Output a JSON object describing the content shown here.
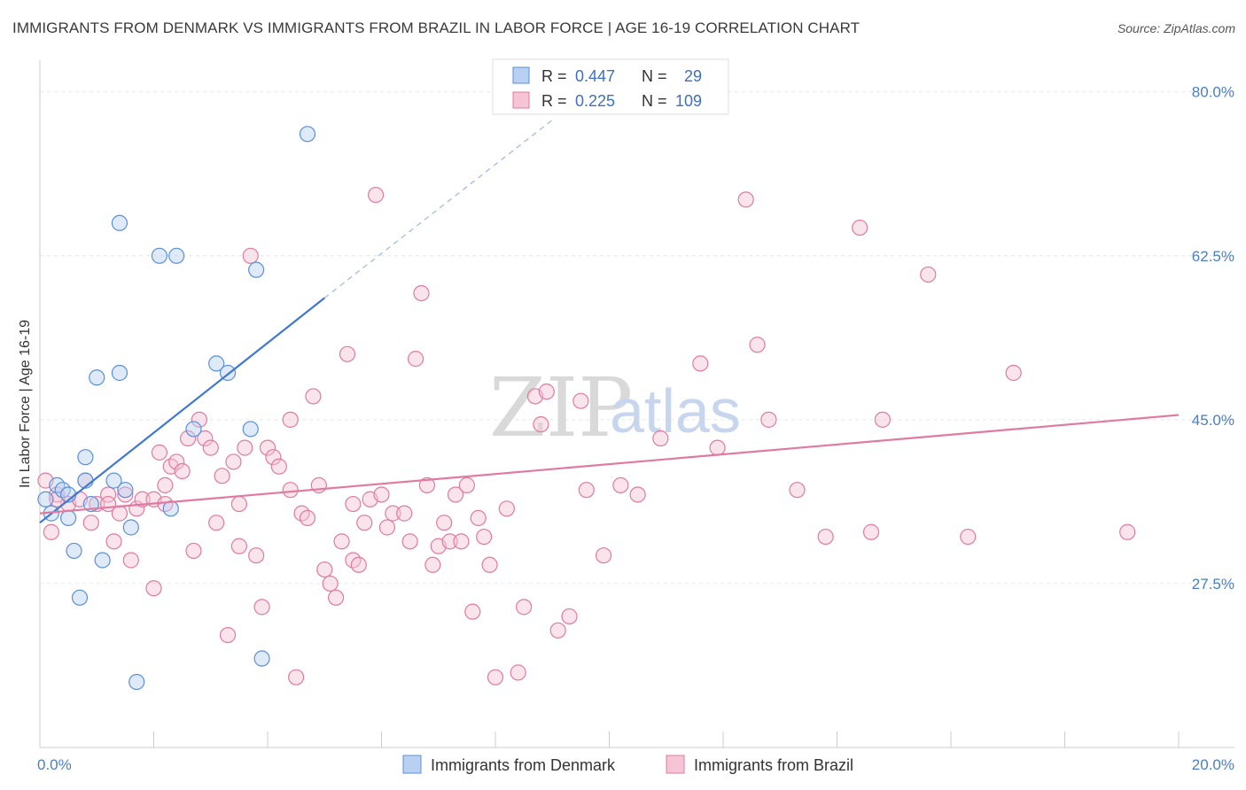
{
  "title": "IMMIGRANTS FROM DENMARK VS IMMIGRANTS FROM BRAZIL IN LABOR FORCE | AGE 16-19 CORRELATION CHART",
  "source": "Source: ZipAtlas.com",
  "watermark": {
    "zip": "ZIP",
    "atlas": "atlas"
  },
  "colors": {
    "blue": "#5b8fd9",
    "blue_fill": "#b8d0f2",
    "pink": "#e07aa0",
    "pink_fill": "#f5c4d5",
    "blue_line": "#3f78d0",
    "pink_line": "#e07aa0"
  },
  "legend": {
    "rows": [
      {
        "r_label": "R =",
        "r_value": "0.447",
        "n_label": "N =",
        "n_value": "29"
      },
      {
        "r_label": "R =",
        "r_value": "0.225",
        "n_label": "N =",
        "n_value": "109"
      }
    ]
  },
  "chart_data": {
    "type": "scatter",
    "title": "IMMIGRANTS FROM DENMARK VS IMMIGRANTS FROM BRAZIL IN LABOR FORCE | AGE 16-19 CORRELATION CHART",
    "xlabel": "",
    "ylabel": "In Labor Force | Age 16-19",
    "xlim": [
      0,
      20
    ],
    "ylim": [
      10,
      83
    ],
    "x_tick_labels": [
      "0.0%",
      "20.0%"
    ],
    "y_ticks": [
      27.5,
      45.0,
      62.5,
      80.0
    ],
    "y_tick_labels": [
      "27.5%",
      "45.0%",
      "62.5%",
      "80.0%"
    ],
    "series": [
      {
        "name": "Immigrants from Denmark",
        "color": "#5b8fd9",
        "points": [
          [
            0.1,
            36.5
          ],
          [
            0.3,
            38.0
          ],
          [
            0.4,
            37.5
          ],
          [
            0.5,
            34.5
          ],
          [
            0.6,
            31.0
          ],
          [
            0.7,
            26.0
          ],
          [
            0.8,
            38.5
          ],
          [
            0.8,
            41.0
          ],
          [
            1.0,
            49.5
          ],
          [
            1.1,
            30.0
          ],
          [
            1.3,
            38.5
          ],
          [
            1.4,
            50.0
          ],
          [
            1.4,
            66.0
          ],
          [
            1.5,
            37.5
          ],
          [
            1.6,
            33.5
          ],
          [
            1.7,
            17.0
          ],
          [
            2.1,
            62.5
          ],
          [
            2.3,
            35.5
          ],
          [
            2.4,
            62.5
          ],
          [
            2.7,
            44.0
          ],
          [
            3.1,
            51.0
          ],
          [
            3.3,
            50.0
          ],
          [
            3.7,
            44.0
          ],
          [
            3.8,
            61.0
          ],
          [
            3.9,
            19.5
          ],
          [
            4.7,
            75.5
          ],
          [
            0.2,
            35.0
          ],
          [
            0.5,
            37.0
          ],
          [
            0.9,
            36.0
          ]
        ],
        "trend": {
          "x": [
            0.0,
            5.0
          ],
          "y": [
            34.0,
            58.0
          ],
          "dashed_to": [
            9.0,
            77.0
          ]
        }
      },
      {
        "name": "Immigrants from Brazil",
        "color": "#e07aa0",
        "points": [
          [
            0.1,
            38.5
          ],
          [
            0.2,
            33.0
          ],
          [
            0.3,
            37.0
          ],
          [
            0.5,
            36.0
          ],
          [
            0.7,
            36.5
          ],
          [
            0.8,
            38.5
          ],
          [
            0.9,
            34.0
          ],
          [
            1.0,
            36.0
          ],
          [
            1.2,
            37.0
          ],
          [
            1.3,
            32.0
          ],
          [
            1.4,
            35.0
          ],
          [
            1.5,
            37.0
          ],
          [
            1.6,
            30.0
          ],
          [
            1.7,
            35.5
          ],
          [
            1.8,
            36.5
          ],
          [
            2.0,
            36.5
          ],
          [
            2.0,
            27.0
          ],
          [
            2.1,
            41.5
          ],
          [
            2.2,
            36.0
          ],
          [
            2.3,
            40.0
          ],
          [
            2.4,
            40.5
          ],
          [
            2.5,
            39.5
          ],
          [
            2.6,
            43.0
          ],
          [
            2.7,
            31.0
          ],
          [
            2.8,
            45.0
          ],
          [
            2.9,
            43.0
          ],
          [
            3.0,
            42.0
          ],
          [
            3.1,
            34.0
          ],
          [
            3.2,
            39.0
          ],
          [
            3.3,
            22.0
          ],
          [
            3.4,
            40.5
          ],
          [
            3.5,
            31.5
          ],
          [
            3.6,
            42.0
          ],
          [
            3.7,
            62.5
          ],
          [
            3.8,
            30.5
          ],
          [
            3.9,
            25.0
          ],
          [
            4.0,
            42.0
          ],
          [
            4.1,
            41.0
          ],
          [
            4.2,
            40.0
          ],
          [
            4.4,
            45.0
          ],
          [
            4.5,
            17.5
          ],
          [
            4.6,
            35.0
          ],
          [
            4.7,
            34.5
          ],
          [
            4.8,
            47.5
          ],
          [
            4.9,
            38.0
          ],
          [
            5.0,
            29.0
          ],
          [
            5.1,
            27.5
          ],
          [
            5.2,
            26.0
          ],
          [
            5.3,
            32.0
          ],
          [
            5.4,
            52.0
          ],
          [
            5.5,
            30.0
          ],
          [
            5.6,
            29.5
          ],
          [
            5.7,
            34.0
          ],
          [
            5.8,
            36.5
          ],
          [
            5.9,
            69.0
          ],
          [
            6.0,
            37.0
          ],
          [
            6.2,
            35.0
          ],
          [
            6.4,
            35.0
          ],
          [
            6.5,
            32.0
          ],
          [
            6.6,
            51.5
          ],
          [
            6.7,
            58.5
          ],
          [
            6.8,
            38.0
          ],
          [
            6.9,
            29.5
          ],
          [
            7.0,
            31.5
          ],
          [
            7.2,
            32.0
          ],
          [
            7.3,
            37.0
          ],
          [
            7.4,
            32.0
          ],
          [
            7.5,
            38.0
          ],
          [
            7.6,
            24.5
          ],
          [
            7.7,
            34.5
          ],
          [
            7.8,
            32.5
          ],
          [
            7.9,
            29.5
          ],
          [
            8.0,
            17.5
          ],
          [
            8.2,
            35.5
          ],
          [
            8.4,
            18.0
          ],
          [
            8.5,
            25.0
          ],
          [
            8.7,
            47.5
          ],
          [
            8.8,
            44.5
          ],
          [
            8.9,
            48.0
          ],
          [
            9.1,
            22.5
          ],
          [
            9.3,
            24.0
          ],
          [
            9.5,
            47.0
          ],
          [
            9.6,
            37.5
          ],
          [
            9.9,
            30.5
          ],
          [
            10.2,
            38.0
          ],
          [
            10.5,
            37.0
          ],
          [
            10.9,
            43.0
          ],
          [
            11.6,
            51.0
          ],
          [
            11.9,
            42.0
          ],
          [
            12.4,
            68.5
          ],
          [
            12.6,
            53.0
          ],
          [
            12.8,
            45.0
          ],
          [
            13.3,
            37.5
          ],
          [
            13.8,
            32.5
          ],
          [
            14.4,
            65.5
          ],
          [
            14.6,
            33.0
          ],
          [
            14.8,
            45.0
          ],
          [
            15.6,
            60.5
          ],
          [
            16.3,
            32.5
          ],
          [
            17.1,
            50.0
          ],
          [
            19.1,
            33.0
          ],
          [
            1.2,
            36.0
          ],
          [
            2.2,
            38.0
          ],
          [
            3.5,
            36.0
          ],
          [
            4.4,
            37.5
          ],
          [
            5.5,
            36.0
          ],
          [
            6.1,
            33.5
          ],
          [
            7.1,
            34.0
          ],
          [
            0.3,
            36.5
          ]
        ],
        "trend": {
          "x": [
            0.0,
            20.0
          ],
          "y": [
            35.0,
            45.5
          ]
        }
      }
    ],
    "legend_position": "top-center"
  }
}
